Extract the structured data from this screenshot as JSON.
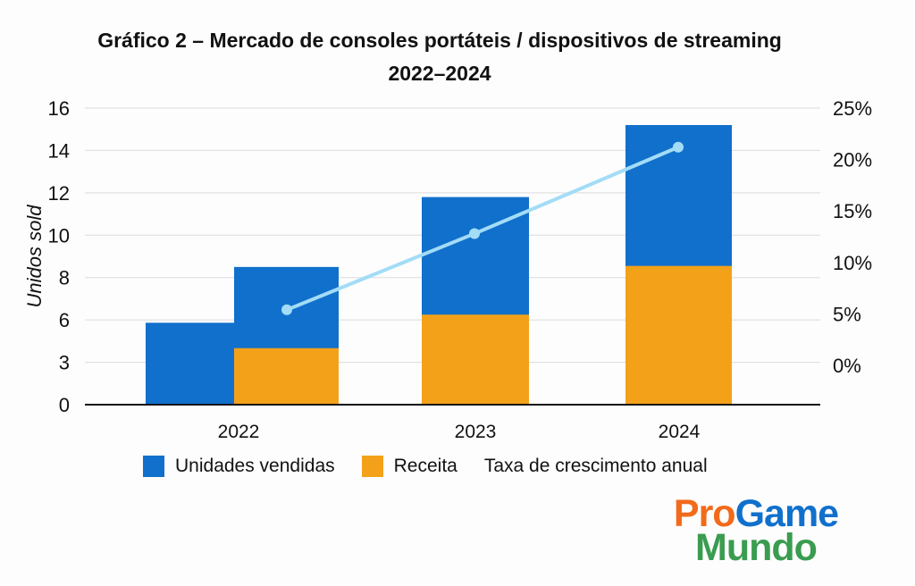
{
  "chart_data": {
    "type": "bar",
    "title": "Gráfico 2 – Mercado de consoles portáteis / dispositivos de streaming",
    "subtitle": "2022–2024",
    "ylabel": "Unidos sold",
    "categories": [
      "2022",
      "2023",
      "2024"
    ],
    "y_ticks": [
      0,
      3,
      6,
      8,
      10,
      12,
      14,
      16
    ],
    "y2_ticks": [
      "0%",
      "5%",
      "10%",
      "15%",
      "20%",
      "25%"
    ],
    "y2_range": [
      0,
      25
    ],
    "grid": true,
    "stacked": true,
    "series": [
      {
        "name": "Unidades vendidas",
        "type": "bar",
        "color": "#1170cc",
        "stack_top": [
          8.5,
          11.8,
          15.2
        ]
      },
      {
        "name": "Receita",
        "type": "bar",
        "color": "#f4a11a",
        "values": [
          4.0,
          6.25,
          8.55
        ]
      },
      {
        "name": "Taxa de crescimento anual",
        "type": "line",
        "axis": "right",
        "color": "#a3dcf7",
        "values": [
          5.4,
          12.8,
          21.2
        ]
      }
    ],
    "extra_bar": {
      "category": "2022",
      "color": "#1170cc",
      "value": 5.8
    },
    "legend_position": "bottom"
  },
  "logo": {
    "line1a": "Pro",
    "line1b": "Game",
    "line2": "Mundo",
    "colors": [
      "#f26a1b",
      "#1170cc",
      "#3a9c4f"
    ]
  }
}
